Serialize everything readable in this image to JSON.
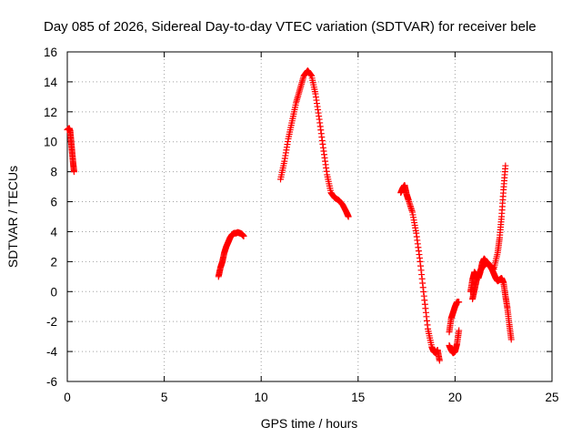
{
  "chart_data": {
    "type": "scatter",
    "title": "Day 085 of 2026, Sidereal Day-to-day VTEC variation (SDTVAR) for receiver bele",
    "xlabel": "GPS time / hours",
    "ylabel": "SDTVAR / TECUs",
    "xlim": [
      0,
      25
    ],
    "ylim": [
      -6,
      16
    ],
    "xticks": [
      0,
      5,
      10,
      15,
      20,
      25
    ],
    "yticks": [
      -6,
      -4,
      -2,
      0,
      2,
      4,
      6,
      8,
      10,
      12,
      14,
      16
    ],
    "grid": true,
    "marker": "plus",
    "color": "#ff0000",
    "series": [
      {
        "name": "SDTVAR",
        "segments": [
          {
            "x": [
              0.0,
              0.1,
              0.15,
              0.2,
              0.25,
              0.3,
              0.35
            ],
            "y": [
              10.8,
              10.9,
              10.7,
              10.0,
              9.3,
              8.6,
              8.0
            ]
          },
          {
            "x": [
              7.8,
              7.9,
              8.0,
              8.1,
              8.2,
              8.3,
              8.4,
              8.5,
              8.6,
              8.7,
              8.8,
              8.9,
              9.0,
              9.1
            ],
            "y": [
              1.0,
              1.6,
              2.0,
              2.6,
              3.0,
              3.3,
              3.6,
              3.8,
              3.9,
              3.9,
              3.95,
              3.9,
              3.85,
              3.7
            ]
          },
          {
            "x": [
              11.0,
              11.2,
              11.4,
              11.6,
              11.8,
              12.0,
              12.2,
              12.4,
              12.6,
              12.8,
              13.0,
              13.2,
              13.4,
              13.6,
              13.8,
              14.0,
              14.2,
              14.4,
              14.5
            ],
            "y": [
              7.5,
              8.7,
              10.2,
              11.4,
              12.6,
              13.5,
              14.4,
              14.75,
              14.4,
              13.2,
              11.5,
              9.6,
              7.8,
              6.6,
              6.25,
              6.1,
              5.8,
              5.3,
              5.0
            ]
          },
          {
            "x": [
              17.2,
              17.3,
              17.4,
              17.5,
              17.6,
              17.8,
              18.0,
              18.2,
              18.4,
              18.6,
              18.8,
              18.9,
              19.0,
              19.1,
              19.2
            ],
            "y": [
              6.6,
              6.9,
              7.1,
              6.5,
              6.1,
              5.3,
              3.9,
              2.0,
              -0.3,
              -2.5,
              -3.7,
              -4.0,
              -4.1,
              -3.9,
              -4.6
            ]
          },
          {
            "x": [
              19.7,
              19.8,
              19.9,
              20.0,
              20.1,
              20.2
            ],
            "y": [
              -3.6,
              -3.9,
              -4.1,
              -4.0,
              -3.5,
              -2.6
            ]
          },
          {
            "x": [
              19.7,
              19.8,
              19.9,
              20.0,
              20.1,
              20.2
            ],
            "y": [
              -2.7,
              -1.8,
              -1.4,
              -1.0,
              -0.7,
              -0.7
            ]
          },
          {
            "x": [
              20.8,
              20.9,
              21.0,
              21.1,
              21.2,
              21.3,
              21.4,
              21.5,
              21.6,
              21.7,
              21.8,
              21.9,
              22.0,
              22.1,
              22.2,
              22.3,
              22.4,
              22.5,
              22.6,
              22.7,
              22.8,
              22.9
            ],
            "y": [
              0.0,
              0.8,
              1.3,
              1.1,
              0.9,
              1.3,
              1.9,
              2.2,
              2.0,
              1.9,
              1.7,
              1.5,
              1.2,
              0.9,
              0.7,
              0.8,
              0.9,
              0.6,
              -0.3,
              -1.1,
              -2.2,
              -3.2
            ]
          },
          {
            "x": [
              20.9,
              21.0,
              21.1,
              21.3,
              21.5,
              21.7,
              21.9,
              22.0,
              22.2,
              22.3,
              22.4,
              22.5,
              22.6
            ],
            "y": [
              -0.5,
              0.1,
              0.7,
              1.4,
              1.8,
              1.9,
              1.6,
              1.5,
              2.6,
              3.6,
              5.0,
              6.8,
              8.4
            ]
          }
        ]
      }
    ]
  }
}
